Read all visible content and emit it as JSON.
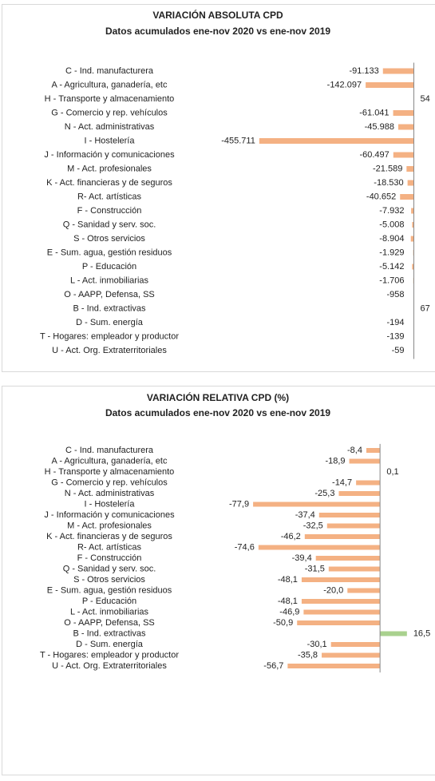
{
  "chart_data": [
    {
      "type": "bar",
      "orientation": "horizontal",
      "title": "VARIACIÓN ABSOLUTA CPD",
      "subtitle": "Datos acumulados ene-nov 2020 vs ene-nov 2019",
      "categories": [
        "C - Ind. manufacturera",
        "A - Agricultura, ganadería, etc",
        "H - Transporte y almacenamiento",
        "G - Comercio y rep. vehículos",
        "N - Act. administrativas",
        "I - Hostelería",
        "J - Información y comunicaciones",
        "M - Act. profesionales",
        "K - Act. financieras y de seguros",
        "R- Act. artísticas",
        "F - Construcción",
        "Q - Sanidad y serv. soc.",
        "S - Otros servicios",
        "E - Sum. agua, gestión residuos",
        "P - Educación",
        "L - Act. inmobiliarias",
        "O - AAPP, Defensa, SS",
        "B - Ind. extractivas",
        "D - Sum. energía",
        "T - Hogares: empleador y productor",
        "U - Act. Org. Extraterritoriales"
      ],
      "values": [
        -91133,
        -142097,
        54,
        -61041,
        -45988,
        -455711,
        -60497,
        -21589,
        -18530,
        -40652,
        -7932,
        -5008,
        -8904,
        -1929,
        -5142,
        -1706,
        -958,
        67,
        -194,
        -139,
        -59
      ],
      "value_labels": [
        "-91.133",
        "-142.097",
        "54",
        "-61.041",
        "-45.988",
        "-455.711",
        "-60.497",
        "-21.589",
        "-18.530",
        "-40.652",
        "-7.932",
        "-5.008",
        "-8.904",
        "-1.929",
        "-5.142",
        "-1.706",
        "-958",
        "67",
        "-194",
        "-139",
        "-59"
      ],
      "color": "#f4b183",
      "positive_color": "#f4b183",
      "xlim": [
        -500000,
        60000
      ]
    },
    {
      "type": "bar",
      "orientation": "horizontal",
      "title": "VARIACIÓN RELATIVA CPD (%)",
      "subtitle": "Datos acumulados ene-nov 2020 vs ene-nov 2019",
      "categories": [
        "C - Ind. manufacturera",
        "A - Agricultura, ganadería, etc",
        "H - Transporte y almacenamiento",
        "G - Comercio y rep. vehículos",
        "N - Act. administrativas",
        "I - Hostelería",
        "J - Información y comunicaciones",
        "M - Act. profesionales",
        "K - Act. financieras y de seguros",
        "R- Act. artísticas",
        "F - Construcción",
        "Q - Sanidad y serv. soc.",
        "S - Otros servicios",
        "E - Sum. agua, gestión residuos",
        "P - Educación",
        "L - Act. inmobiliarias",
        "O - AAPP, Defensa, SS",
        "B - Ind. extractivas",
        "D - Sum. energía",
        "T - Hogares: empleador y productor",
        "U - Act. Org. Extraterritoriales"
      ],
      "values": [
        -8.4,
        -18.9,
        0.1,
        -14.7,
        -25.3,
        -77.9,
        -37.4,
        -32.5,
        -46.2,
        -74.6,
        -39.4,
        -31.5,
        -48.1,
        -20.0,
        -48.1,
        -46.9,
        -50.9,
        16.5,
        -30.1,
        -35.8,
        -56.7
      ],
      "value_labels": [
        "-8,4",
        "-18,9",
        "0,1",
        "-14,7",
        "-25,3",
        "-77,9",
        "-37,4",
        "-32,5",
        "-46,2",
        "-74,6",
        "-39,4",
        "-31,5",
        "-48,1",
        "-20,0",
        "-48,1",
        "-46,9",
        "-50,9",
        "16,5",
        "-30,1",
        "-35,8",
        "-56,7"
      ],
      "color": "#f4b183",
      "positive_color": "#a9d18e",
      "xlim": [
        -85,
        33
      ]
    }
  ]
}
